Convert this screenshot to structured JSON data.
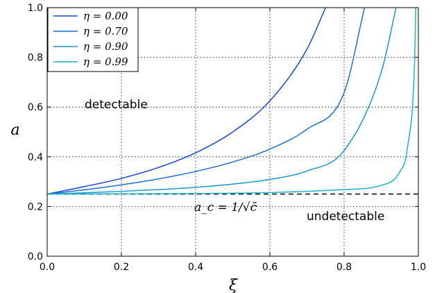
{
  "chart_data": {
    "type": "line",
    "xlabel": "ξ",
    "ylabel": "a",
    "xlim": [
      0.0,
      1.0
    ],
    "ylim": [
      0.0,
      1.0
    ],
    "x_ticks": [
      "0.0",
      "0.2",
      "0.4",
      "0.6",
      "0.8",
      "1.0"
    ],
    "y_ticks": [
      "0.0",
      "0.2",
      "0.4",
      "0.6",
      "0.8",
      "1.0"
    ],
    "grid": true,
    "legend_position": "top-left",
    "series": [
      {
        "name": "η = 0.00",
        "color": "#1446d6",
        "x": [
          0.0,
          0.1,
          0.2,
          0.3,
          0.4,
          0.5,
          0.6,
          0.7,
          0.75
        ],
        "y": [
          0.25,
          0.28,
          0.313,
          0.357,
          0.416,
          0.5,
          0.625,
          0.833,
          1.0
        ]
      },
      {
        "name": "η = 0.70",
        "color": "#1a6fd4",
        "x": [
          0.0,
          0.1,
          0.2,
          0.3,
          0.4,
          0.5,
          0.6,
          0.7,
          0.8,
          0.855
        ],
        "y": [
          0.25,
          0.267,
          0.287,
          0.311,
          0.341,
          0.379,
          0.431,
          0.511,
          0.658,
          1.0
        ]
      },
      {
        "name": "η = 0.90",
        "color": "#1a93d0",
        "x": [
          0.0,
          0.1,
          0.2,
          0.3,
          0.4,
          0.5,
          0.6,
          0.7,
          0.8,
          0.9,
          0.94
        ],
        "y": [
          0.25,
          0.255,
          0.261,
          0.268,
          0.277,
          0.29,
          0.309,
          0.343,
          0.425,
          0.74,
          1.0
        ]
      },
      {
        "name": "η = 0.99",
        "color": "#19b4c8",
        "x": [
          0.0,
          0.2,
          0.4,
          0.6,
          0.8,
          0.9,
          0.95,
          0.97,
          0.99,
          0.993
        ],
        "y": [
          0.25,
          0.251,
          0.252,
          0.256,
          0.268,
          0.285,
          0.34,
          0.43,
          0.79,
          1.0
        ]
      }
    ],
    "threshold": {
      "y": 0.25,
      "style": "dashed",
      "label": "a_c = 1/√c̄"
    },
    "annotations": [
      {
        "text": "detectable",
        "x": 0.1,
        "y": 0.6
      },
      {
        "text": "undetectable",
        "x": 0.7,
        "y": 0.16
      }
    ]
  }
}
